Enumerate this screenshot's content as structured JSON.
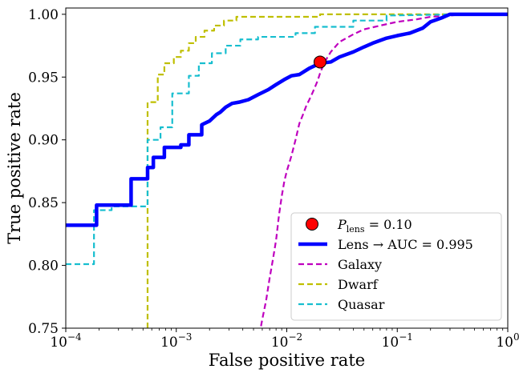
{
  "chart_data": {
    "type": "line",
    "xlabel": "False positive rate",
    "ylabel": "True positive rate",
    "xscale": "log",
    "xlim": [
      0.0001,
      1
    ],
    "ylim": [
      0.75,
      1.005
    ],
    "x_ticks": [
      {
        "value": 0.0001,
        "base": "10",
        "exp": "−4"
      },
      {
        "value": 0.001,
        "base": "10",
        "exp": "−3"
      },
      {
        "value": 0.01,
        "base": "10",
        "exp": "−2"
      },
      {
        "value": 0.1,
        "base": "10",
        "exp": "−1"
      },
      {
        "value": 1,
        "base": "10",
        "exp": "0"
      }
    ],
    "y_ticks": [
      {
        "value": 0.75,
        "label": "0.75"
      },
      {
        "value": 0.8,
        "label": "0.80"
      },
      {
        "value": 0.85,
        "label": "0.85"
      },
      {
        "value": 0.9,
        "label": "0.90"
      },
      {
        "value": 0.95,
        "label": "0.95"
      },
      {
        "value": 1.0,
        "label": "1.00"
      }
    ],
    "legend_position": "lower-right",
    "marker": {
      "label_main": "P",
      "label_sub": "lens",
      "label_rest": " = 0.10",
      "x": 0.02,
      "y": 0.962,
      "color": "#ff0000"
    },
    "series": [
      {
        "name": "Lens → AUC = 0.995",
        "color": "#0000ff",
        "style": "solid",
        "width": 4.5,
        "x": [
          0.0001,
          0.00019,
          0.00019,
          0.00039,
          0.00039,
          0.00055,
          0.00055,
          0.00062,
          0.00062,
          0.00078,
          0.00078,
          0.0011,
          0.0011,
          0.0013,
          0.0013,
          0.0017,
          0.0017,
          0.002,
          0.0023,
          0.0025,
          0.0028,
          0.0032,
          0.0037,
          0.0045,
          0.0055,
          0.0068,
          0.008,
          0.0095,
          0.011,
          0.013,
          0.016,
          0.02,
          0.025,
          0.03,
          0.04,
          0.05,
          0.06,
          0.08,
          0.1,
          0.13,
          0.17,
          0.2,
          0.25,
          0.3,
          0.4,
          1
        ],
        "y": [
          0.832,
          0.832,
          0.848,
          0.848,
          0.869,
          0.869,
          0.878,
          0.878,
          0.886,
          0.886,
          0.894,
          0.894,
          0.896,
          0.896,
          0.904,
          0.904,
          0.912,
          0.915,
          0.92,
          0.922,
          0.926,
          0.929,
          0.93,
          0.932,
          0.936,
          0.94,
          0.944,
          0.948,
          0.951,
          0.952,
          0.957,
          0.961,
          0.962,
          0.966,
          0.97,
          0.974,
          0.977,
          0.981,
          0.983,
          0.985,
          0.989,
          0.994,
          0.997,
          1.0,
          1.0,
          1.0
        ]
      },
      {
        "name": "Galaxy",
        "color": "#bf00bf",
        "style": "dashed",
        "width": 2.2,
        "x": [
          0.0055,
          0.0058,
          0.006,
          0.0065,
          0.007,
          0.0075,
          0.008,
          0.0085,
          0.009,
          0.0095,
          0.01,
          0.011,
          0.012,
          0.013,
          0.014,
          0.015,
          0.016,
          0.017,
          0.018,
          0.019,
          0.02,
          0.022,
          0.025,
          0.03,
          0.04,
          0.05,
          0.07,
          0.1,
          0.15,
          0.2,
          0.3,
          0.4,
          1
        ],
        "y": [
          0.745,
          0.75,
          0.757,
          0.772,
          0.79,
          0.805,
          0.82,
          0.84,
          0.855,
          0.867,
          0.875,
          0.887,
          0.9,
          0.913,
          0.92,
          0.927,
          0.932,
          0.937,
          0.942,
          0.947,
          0.953,
          0.962,
          0.97,
          0.978,
          0.984,
          0.988,
          0.991,
          0.994,
          0.996,
          0.998,
          0.999,
          1.0,
          1.0
        ]
      },
      {
        "name": "Dwarf",
        "color": "#bfbf00",
        "style": "dashed",
        "width": 2.2,
        "x": [
          0.00055,
          0.00055,
          0.00068,
          0.00068,
          0.00078,
          0.00078,
          0.00095,
          0.00095,
          0.0011,
          0.0011,
          0.0013,
          0.0013,
          0.0015,
          0.0015,
          0.0018,
          0.0018,
          0.0022,
          0.0022,
          0.0027,
          0.0027,
          0.0035,
          0.0035,
          0.02,
          0.02,
          0.4,
          1
        ],
        "y": [
          0.75,
          0.93,
          0.93,
          0.952,
          0.952,
          0.961,
          0.961,
          0.966,
          0.966,
          0.971,
          0.971,
          0.977,
          0.977,
          0.982,
          0.982,
          0.987,
          0.987,
          0.991,
          0.991,
          0.995,
          0.995,
          0.998,
          0.998,
          1.0,
          1.0,
          1.0
        ]
      },
      {
        "name": "Quasar",
        "color": "#17becf",
        "style": "dashed",
        "width": 2.2,
        "x": [
          0.0001,
          0.00018,
          0.00018,
          0.00026,
          0.00026,
          0.00055,
          0.00055,
          0.00072,
          0.00072,
          0.00092,
          0.00092,
          0.0013,
          0.0013,
          0.0016,
          0.0016,
          0.0021,
          0.0021,
          0.0028,
          0.0028,
          0.0038,
          0.0038,
          0.0055,
          0.0055,
          0.012,
          0.012,
          0.018,
          0.018,
          0.04,
          0.04,
          0.08,
          0.08,
          0.4,
          1
        ],
        "y": [
          0.801,
          0.801,
          0.844,
          0.844,
          0.847,
          0.847,
          0.9,
          0.9,
          0.91,
          0.91,
          0.937,
          0.937,
          0.951,
          0.951,
          0.961,
          0.961,
          0.969,
          0.969,
          0.975,
          0.975,
          0.98,
          0.98,
          0.982,
          0.982,
          0.985,
          0.985,
          0.99,
          0.99,
          0.995,
          0.995,
          0.999,
          1.0,
          1.0
        ]
      }
    ]
  }
}
